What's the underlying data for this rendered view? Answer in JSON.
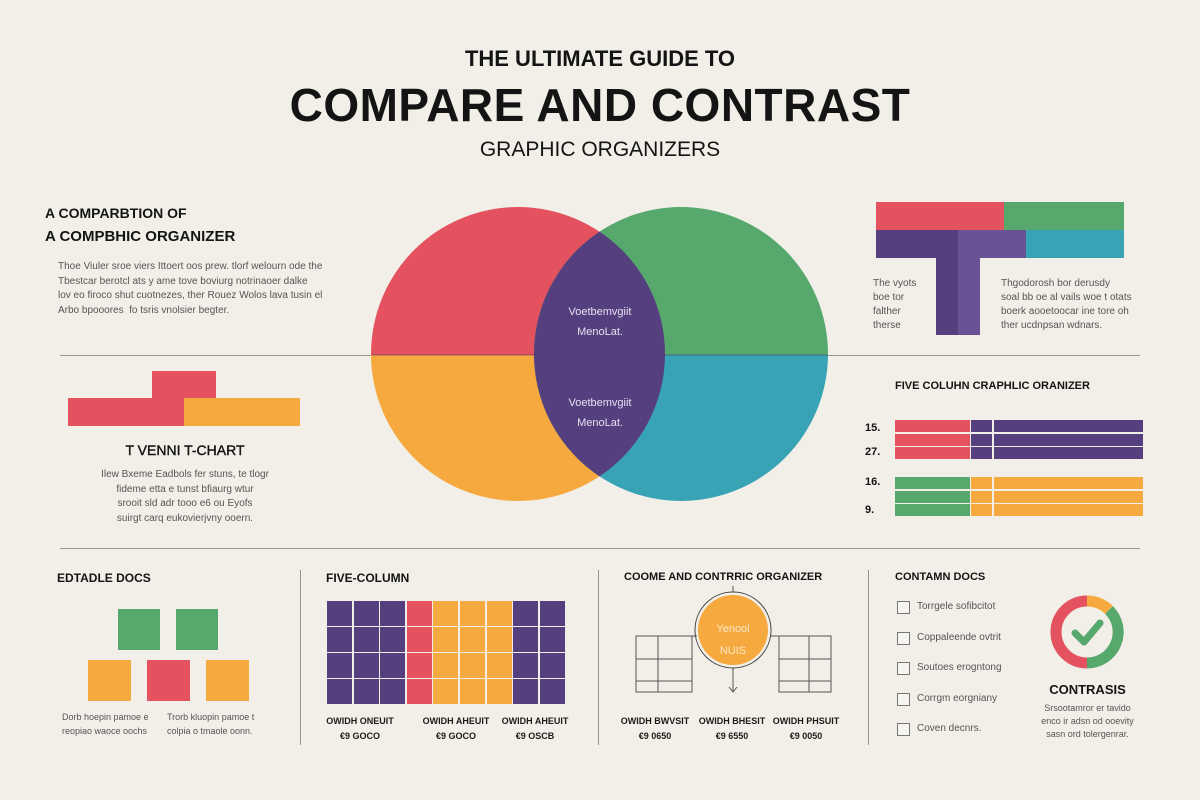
{
  "header": {
    "kicker": "THE ULTIMATE GUIDE TO",
    "title": "COMPARE AND CONTRAST",
    "subtitle": "GRAPHIC ORGANIZERS"
  },
  "intro": {
    "heading1": "A COMPARBTION OF",
    "heading2": "A COMPBHIC ORGANIZER",
    "body": "Thoe Viuler sroe viers Ittoert oos prew. tlorf welourn ode the\nTbestcar berotcl ats y ame tove boviurg notrinaoer dalke\nlov eo firoco shut cuotnezes, ther Rouez Wolos lava tusin el\nArbo bpooores  fo tsris vnolsier begter."
  },
  "venn": {
    "top_label": "Voetbemvgiit\nMenoLat.",
    "bottom_label": "Voetbemvgiit\nMenoLat.",
    "colors": {
      "left_top": "#e4525f",
      "right_top": "#57a86d",
      "left_bottom": "#f5a93e",
      "right_bottom": "#38a3b4",
      "overlap": "#553f7e"
    }
  },
  "tchart": {
    "title": "T VENNI  T-CHART",
    "body": "Ilew Bxeme Eadbols fer stuns, te tlogr\nfideme etta e tunst bfiaurg wtur\nsrooit sld adr tooo e6 ou Eyofs\nsuirgt carq eukovierjvny ooern."
  },
  "t_organizer": {
    "left_text": "The vyots\nboe tor\nfalther\ntherse",
    "right_text": "Thgodorosh bor derusdy\nsoal bb oe al vails woe t otats\nboerk aooetoocar ine tore oh\nther ucdnpsan wdnars."
  },
  "five_column_organizer": {
    "title": "FIVE COLUHN CRAPHLIC ORANIZER",
    "rows": [
      "15.",
      "27.",
      "16.",
      "9."
    ]
  },
  "editable_docs": {
    "title": "EDTADLE DOCS",
    "captions": [
      "Dorb hoepin pamoe e\nreopiao waoce oochs",
      "Trorb kluopin pamoe t\ncolpia o tmaole oonn."
    ]
  },
  "five_column": {
    "title": "FIVE-COLUMN",
    "column_colors": [
      "purple",
      "purple",
      "purple",
      "red",
      "yellow",
      "yellow",
      "yellow",
      "purple",
      "purple"
    ],
    "labels": [
      "OWIDH ONEUIT\n€9 GOCO",
      "OWIDH AHEUIT\n€9 GOCO",
      "OWIDH AHEUIT\n€9 OSCB"
    ]
  },
  "compare_organizer": {
    "title": "COOME AND CONTRRIC ORGANIZER",
    "center_text": "Yenool\nNUIS",
    "labels": [
      "OWIDH BWVSIT\n€9 0650",
      "OWIDH BHESIT\n€9 6550",
      "OWIDH PHSUIT\n€9 0050"
    ]
  },
  "contain_docs": {
    "title": "CONTAMN DOCS",
    "items": [
      "Torrgele sofibcitot",
      "Coppaleende ovtrit",
      "Soutoes erogntong",
      "Corrgm eorgniany",
      "Coven decnrs."
    ],
    "badge_title": "CONTRASIS",
    "badge_body": "Srsootamror er tavido\nenco ir adsn od ooevity\nsasn ord tolergenrar.",
    "icon": "check-donut-icon"
  }
}
